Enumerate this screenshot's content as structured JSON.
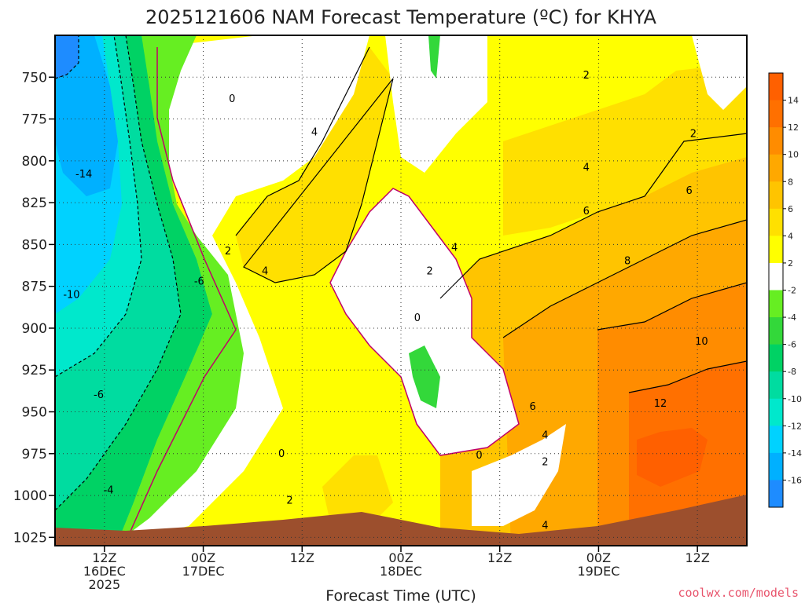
{
  "chart_data": {
    "type": "heatmap",
    "title": "2025121606 NAM Forecast Temperature (ºC) for KHYA",
    "xlabel": "Forecast Time (UTC)",
    "ylabel": "",
    "y_scale": "pressure (hPa), inverted",
    "ylim": [
      1030,
      725
    ],
    "y_ticks": [
      "750",
      "775",
      "800",
      "825",
      "850",
      "875",
      "900",
      "925",
      "950",
      "975",
      "1000",
      "1025"
    ],
    "x_ticks": [
      {
        "hour": 6,
        "lines": [
          "12Z",
          "16DEC",
          "2025"
        ]
      },
      {
        "hour": 18,
        "lines": [
          "00Z",
          "17DEC"
        ]
      },
      {
        "hour": 30,
        "lines": [
          "12Z"
        ]
      },
      {
        "hour": 42,
        "lines": [
          "00Z",
          "18DEC"
        ]
      },
      {
        "hour": 54,
        "lines": [
          "12Z"
        ]
      },
      {
        "hour": 66,
        "lines": [
          "00Z",
          "19DEC"
        ]
      },
      {
        "hour": 78,
        "lines": [
          "12Z"
        ]
      }
    ],
    "xlim_hours": [
      0,
      84
    ],
    "grid": true,
    "colorbar": {
      "placement": "right",
      "levels": [
        -16,
        -14,
        -12,
        -10,
        -8,
        -6,
        -4,
        -2,
        2,
        4,
        6,
        8,
        10,
        12,
        14
      ],
      "labels": [
        "14",
        "12",
        "10",
        "8",
        "6",
        "4",
        "2",
        "-2",
        "-4",
        "-6",
        "-8",
        "-10",
        "-12",
        "-14",
        "-16"
      ],
      "colors": [
        "#1e8cff",
        "#00b0ff",
        "#00d2ff",
        "#00e8cc",
        "#00dca0",
        "#00d264",
        "#33d83a",
        "#66ee22",
        "#ffffff",
        "#ffff00",
        "#ffe000",
        "#ffc400",
        "#ffa800",
        "#ff8c00",
        "#ff7000",
        "#ff6000"
      ]
    },
    "contour_labels": [
      {
        "hour": 3.5,
        "p": 808,
        "text": "-14"
      },
      {
        "hour": 2.0,
        "p": 880,
        "text": "-10"
      },
      {
        "hour": 5.3,
        "p": 940,
        "text": "-6"
      },
      {
        "hour": 6.5,
        "p": 997,
        "text": "-4"
      },
      {
        "hour": 17.5,
        "p": 872,
        "text": "-6"
      },
      {
        "hour": 21.5,
        "p": 763,
        "text": "0"
      },
      {
        "hour": 21.0,
        "p": 854,
        "text": "2"
      },
      {
        "hour": 25.5,
        "p": 866,
        "text": "4"
      },
      {
        "hour": 31.5,
        "p": 783,
        "text": "4"
      },
      {
        "hour": 27.5,
        "p": 975,
        "text": "0"
      },
      {
        "hour": 28.5,
        "p": 1003,
        "text": "2"
      },
      {
        "hour": 44.0,
        "p": 894,
        "text": "0"
      },
      {
        "hour": 45.5,
        "p": 866,
        "text": "2"
      },
      {
        "hour": 48.5,
        "p": 852,
        "text": "4"
      },
      {
        "hour": 51.5,
        "p": 976,
        "text": "0"
      },
      {
        "hour": 59.5,
        "p": 980,
        "text": "2"
      },
      {
        "hour": 59.5,
        "p": 964,
        "text": "4"
      },
      {
        "hour": 58.0,
        "p": 947,
        "text": "6"
      },
      {
        "hour": 59.5,
        "p": 1018,
        "text": "4"
      },
      {
        "hour": 64.5,
        "p": 749,
        "text": "2"
      },
      {
        "hour": 64.5,
        "p": 804,
        "text": "4"
      },
      {
        "hour": 64.5,
        "p": 830,
        "text": "6"
      },
      {
        "hour": 69.5,
        "p": 860,
        "text": "8"
      },
      {
        "hour": 77.5,
        "p": 784,
        "text": "2"
      },
      {
        "hour": 77.0,
        "p": 818,
        "text": "6"
      },
      {
        "hour": 78.5,
        "p": 908,
        "text": "10"
      },
      {
        "hour": 73.5,
        "p": 945,
        "text": "12"
      }
    ],
    "credit": "coolwx.com/models"
  }
}
